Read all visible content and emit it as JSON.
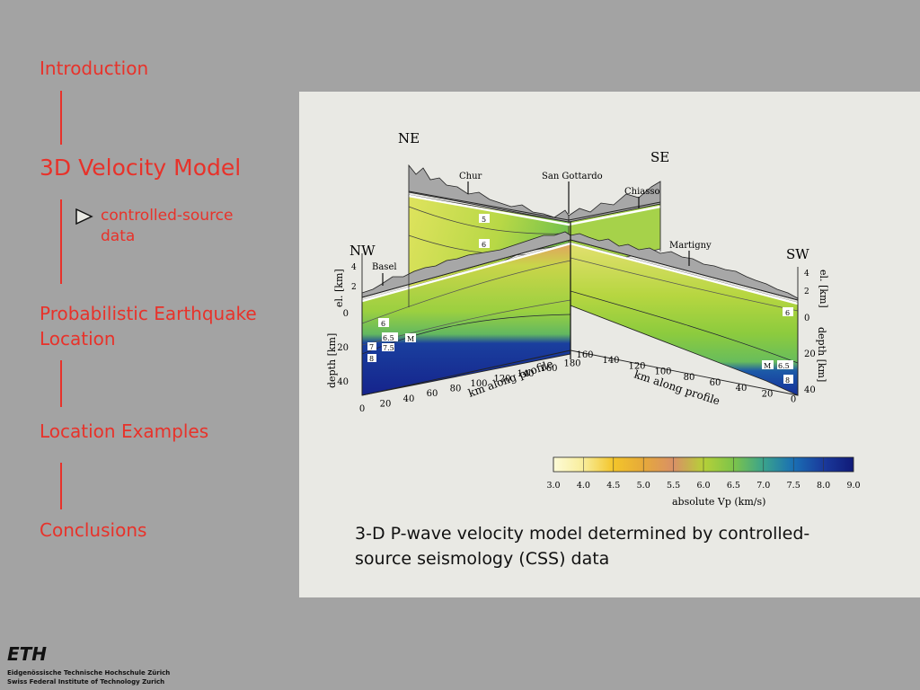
{
  "nav": {
    "introduction": "Introduction",
    "velocity_model": "3D Velocity Model",
    "sub_item": "controlled-source data",
    "probabilistic": "Probabilistic Earthquake Location",
    "examples": "Location Examples",
    "conclusions": "Conclusions"
  },
  "figure": {
    "directions": {
      "ne": "NE",
      "se": "SE",
      "nw": "NW",
      "sw": "SW"
    },
    "places": {
      "chur": "Chur",
      "san_gottardo": "San Gottardo",
      "chiasso": "Chiasso",
      "basel": "Basel",
      "martigny": "Martigny"
    },
    "axes": {
      "elevation_label": "el. [km]",
      "depth_label": "depth [km]",
      "profile_label": "km along profile",
      "left_depth_ticks": [
        "0",
        "20",
        "40"
      ],
      "left_elev_ticks": [
        "4",
        "2"
      ],
      "right_depth_ticks": [
        "0",
        "20",
        "40"
      ],
      "right_elev_ticks": [
        "4",
        "2"
      ],
      "left_profile_ticks": [
        "0",
        "20",
        "40",
        "60",
        "80",
        "100",
        "120",
        "140",
        "160",
        "180"
      ],
      "right_profile_ticks": [
        "160",
        "140",
        "120",
        "100",
        "80",
        "60",
        "40",
        "20",
        "0"
      ]
    },
    "contours": {
      "c5": "5",
      "c6": "6",
      "c65": "6.5",
      "c7": "7",
      "c75": "7.5",
      "c8": "8",
      "moho": "M"
    },
    "colorbar": {
      "label": "absolute Vp (km/s)",
      "ticks": [
        "3.0",
        "4.0",
        "4.5",
        "5.0",
        "5.5",
        "6.0",
        "6.5",
        "7.0",
        "7.5",
        "8.0",
        "9.0"
      ]
    }
  },
  "caption": "3-D P-wave velocity model determined by controlled-source seismology (CSS) data",
  "footer": {
    "logo": "ETH",
    "line1": "Eidgenössische Technische Hochschule Zürich",
    "line2": "Swiss Federal Institute of Technology Zurich"
  }
}
